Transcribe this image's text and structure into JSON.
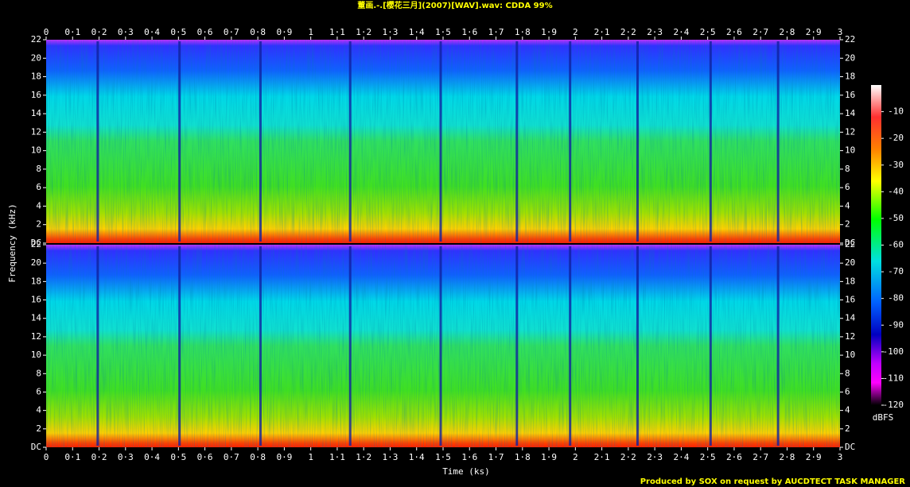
{
  "chart_data": {
    "type": "spectrogram",
    "title": "董画.-.[櫻花三月](2007)[WAV].wav: CDDA 99%",
    "x_label": "Time (ks)",
    "y_label": "Frequency (kHz)",
    "footer": "Produced by SOX on request by AUCDTECT TASK MANAGER",
    "xlim": [
      0,
      3
    ],
    "xticks": [
      0,
      {
        "value": 0.1,
        "label": "0·1"
      },
      {
        "value": 0.2,
        "label": "0·2"
      },
      {
        "value": 0.3,
        "label": "0·3"
      },
      {
        "value": 0.4,
        "label": "0·4"
      },
      {
        "value": 0.5,
        "label": "0·5"
      },
      {
        "value": 0.6,
        "label": "0·6"
      },
      {
        "value": 0.7,
        "label": "0·7"
      },
      {
        "value": 0.8,
        "label": "0·8"
      },
      {
        "value": 0.9,
        "label": "0·9"
      },
      1,
      {
        "value": 1.1,
        "label": "1·1"
      },
      {
        "value": 1.2,
        "label": "1·2"
      },
      {
        "value": 1.3,
        "label": "1·3"
      },
      {
        "value": 1.4,
        "label": "1·4"
      },
      {
        "value": 1.5,
        "label": "1·5"
      },
      {
        "value": 1.6,
        "label": "1·6"
      },
      {
        "value": 1.7,
        "label": "1·7"
      },
      {
        "value": 1.8,
        "label": "1·8"
      },
      {
        "value": 1.9,
        "label": "1·9"
      },
      2,
      {
        "value": 2.1,
        "label": "2·1"
      },
      {
        "value": 2.2,
        "label": "2·2"
      },
      {
        "value": 2.3,
        "label": "2·3"
      },
      {
        "value": 2.4,
        "label": "2·4"
      },
      {
        "value": 2.5,
        "label": "2·5"
      },
      {
        "value": 2.6,
        "label": "2·6"
      },
      {
        "value": 2.7,
        "label": "2·7"
      },
      {
        "value": 2.8,
        "label": "2·8"
      },
      {
        "value": 2.9,
        "label": "2·9"
      },
      3
    ],
    "ylim": [
      0,
      22
    ],
    "yticks": [
      {
        "value": 0,
        "label": "DC"
      },
      2,
      4,
      6,
      8,
      10,
      12,
      14,
      16,
      18,
      20,
      22
    ],
    "colorbar": {
      "label": "dBFS",
      "zlim": [
        -120,
        0
      ],
      "ticks": [
        -10,
        -20,
        -30,
        -40,
        -50,
        -60,
        -70,
        -80,
        -90,
        -100,
        -110,
        -120
      ]
    }
  }
}
